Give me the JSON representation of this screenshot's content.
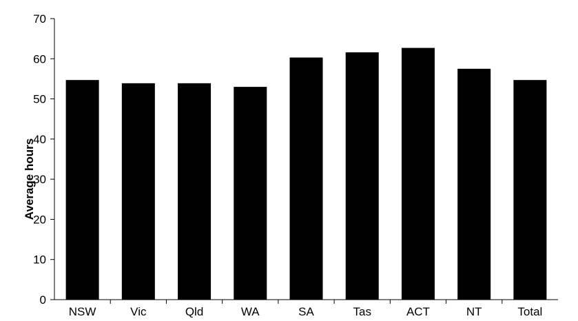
{
  "chart_data": {
    "type": "bar",
    "title": "",
    "xlabel": "",
    "ylabel": "Average hours",
    "categories": [
      "NSW",
      "Vic",
      "Qld",
      "WA",
      "SA",
      "Tas",
      "ACT",
      "NT",
      "Total"
    ],
    "values": [
      54.7,
      53.9,
      53.9,
      53.0,
      60.3,
      61.6,
      62.7,
      57.5,
      54.7
    ],
    "ylim": [
      0,
      70
    ],
    "yticks": [
      0,
      10,
      20,
      30,
      40,
      50,
      60,
      70
    ],
    "grid": false,
    "legend": "none",
    "bar_color": "#000000"
  }
}
